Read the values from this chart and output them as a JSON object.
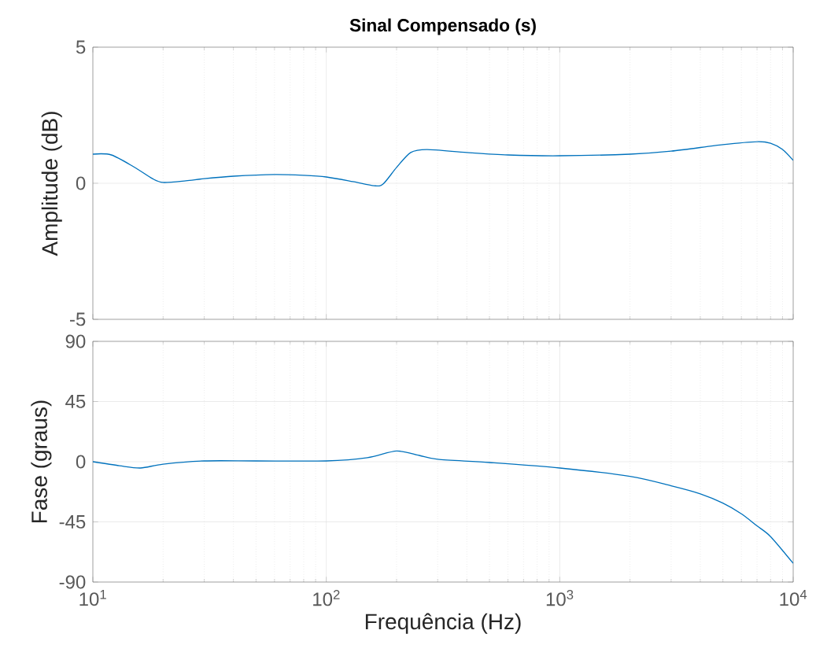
{
  "chart_data": [
    {
      "type": "line",
      "title": "Sinal Compensado (s)",
      "ylabel": "Amplitude (dB)",
      "log": "x",
      "grid": true,
      "tick_labels": "y",
      "xlim": [
        10,
        10000
      ],
      "xticks": [
        {
          "value": 10,
          "label": null
        },
        {
          "value": 100,
          "label": null
        },
        {
          "value": 1000,
          "label": null
        },
        {
          "value": 10000,
          "label": null
        }
      ],
      "ylim": [
        -5,
        5
      ],
      "yticks": [
        -5,
        0,
        5
      ],
      "x": [
        10,
        12,
        15,
        18,
        20,
        25,
        30,
        40,
        60,
        80,
        100,
        130,
        160,
        175,
        200,
        230,
        270,
        400,
        600,
        1000,
        2000,
        3000,
        5000,
        7000,
        8000,
        9000,
        10000
      ],
      "series": [
        {
          "color": "#0072bd",
          "values": [
            1.07,
            1.04,
            0.6,
            0.17,
            0.03,
            0.09,
            0.17,
            0.26,
            0.32,
            0.29,
            0.23,
            0.06,
            -0.09,
            -0.03,
            0.58,
            1.13,
            1.24,
            1.13,
            1.04,
            1.01,
            1.07,
            1.18,
            1.42,
            1.53,
            1.47,
            1.24,
            0.84
          ]
        }
      ]
    },
    {
      "type": "line",
      "xlabel": "Frequência (Hz)",
      "ylabel": "Fase (graus)",
      "log": "x",
      "grid": true,
      "xlim": [
        10,
        10000
      ],
      "xticks": [
        {
          "value": 10,
          "label": "10$^{1}$"
        },
        {
          "value": 100,
          "label": "10$^{2}$"
        },
        {
          "value": 1000,
          "label": "10$^{3}$"
        },
        {
          "value": 10000,
          "label": "10$^{4}$"
        }
      ],
      "ylim": [
        -90,
        90
      ],
      "yticks": [
        -90,
        -45,
        0,
        45,
        90
      ],
      "x": [
        10,
        13,
        16,
        20,
        30,
        50,
        100,
        150,
        200,
        250,
        300,
        500,
        1000,
        2000,
        3000,
        4000,
        5000,
        6000,
        7000,
        8000,
        10000
      ],
      "series": [
        {
          "color": "#0072bd",
          "values": [
            0,
            -3,
            -4.7,
            -1.8,
            0.6,
            0.6,
            0.6,
            3,
            8,
            4.7,
            1.8,
            -0.6,
            -4.7,
            -11,
            -18,
            -24,
            -31,
            -39,
            -48,
            -56,
            -76
          ]
        }
      ]
    }
  ]
}
